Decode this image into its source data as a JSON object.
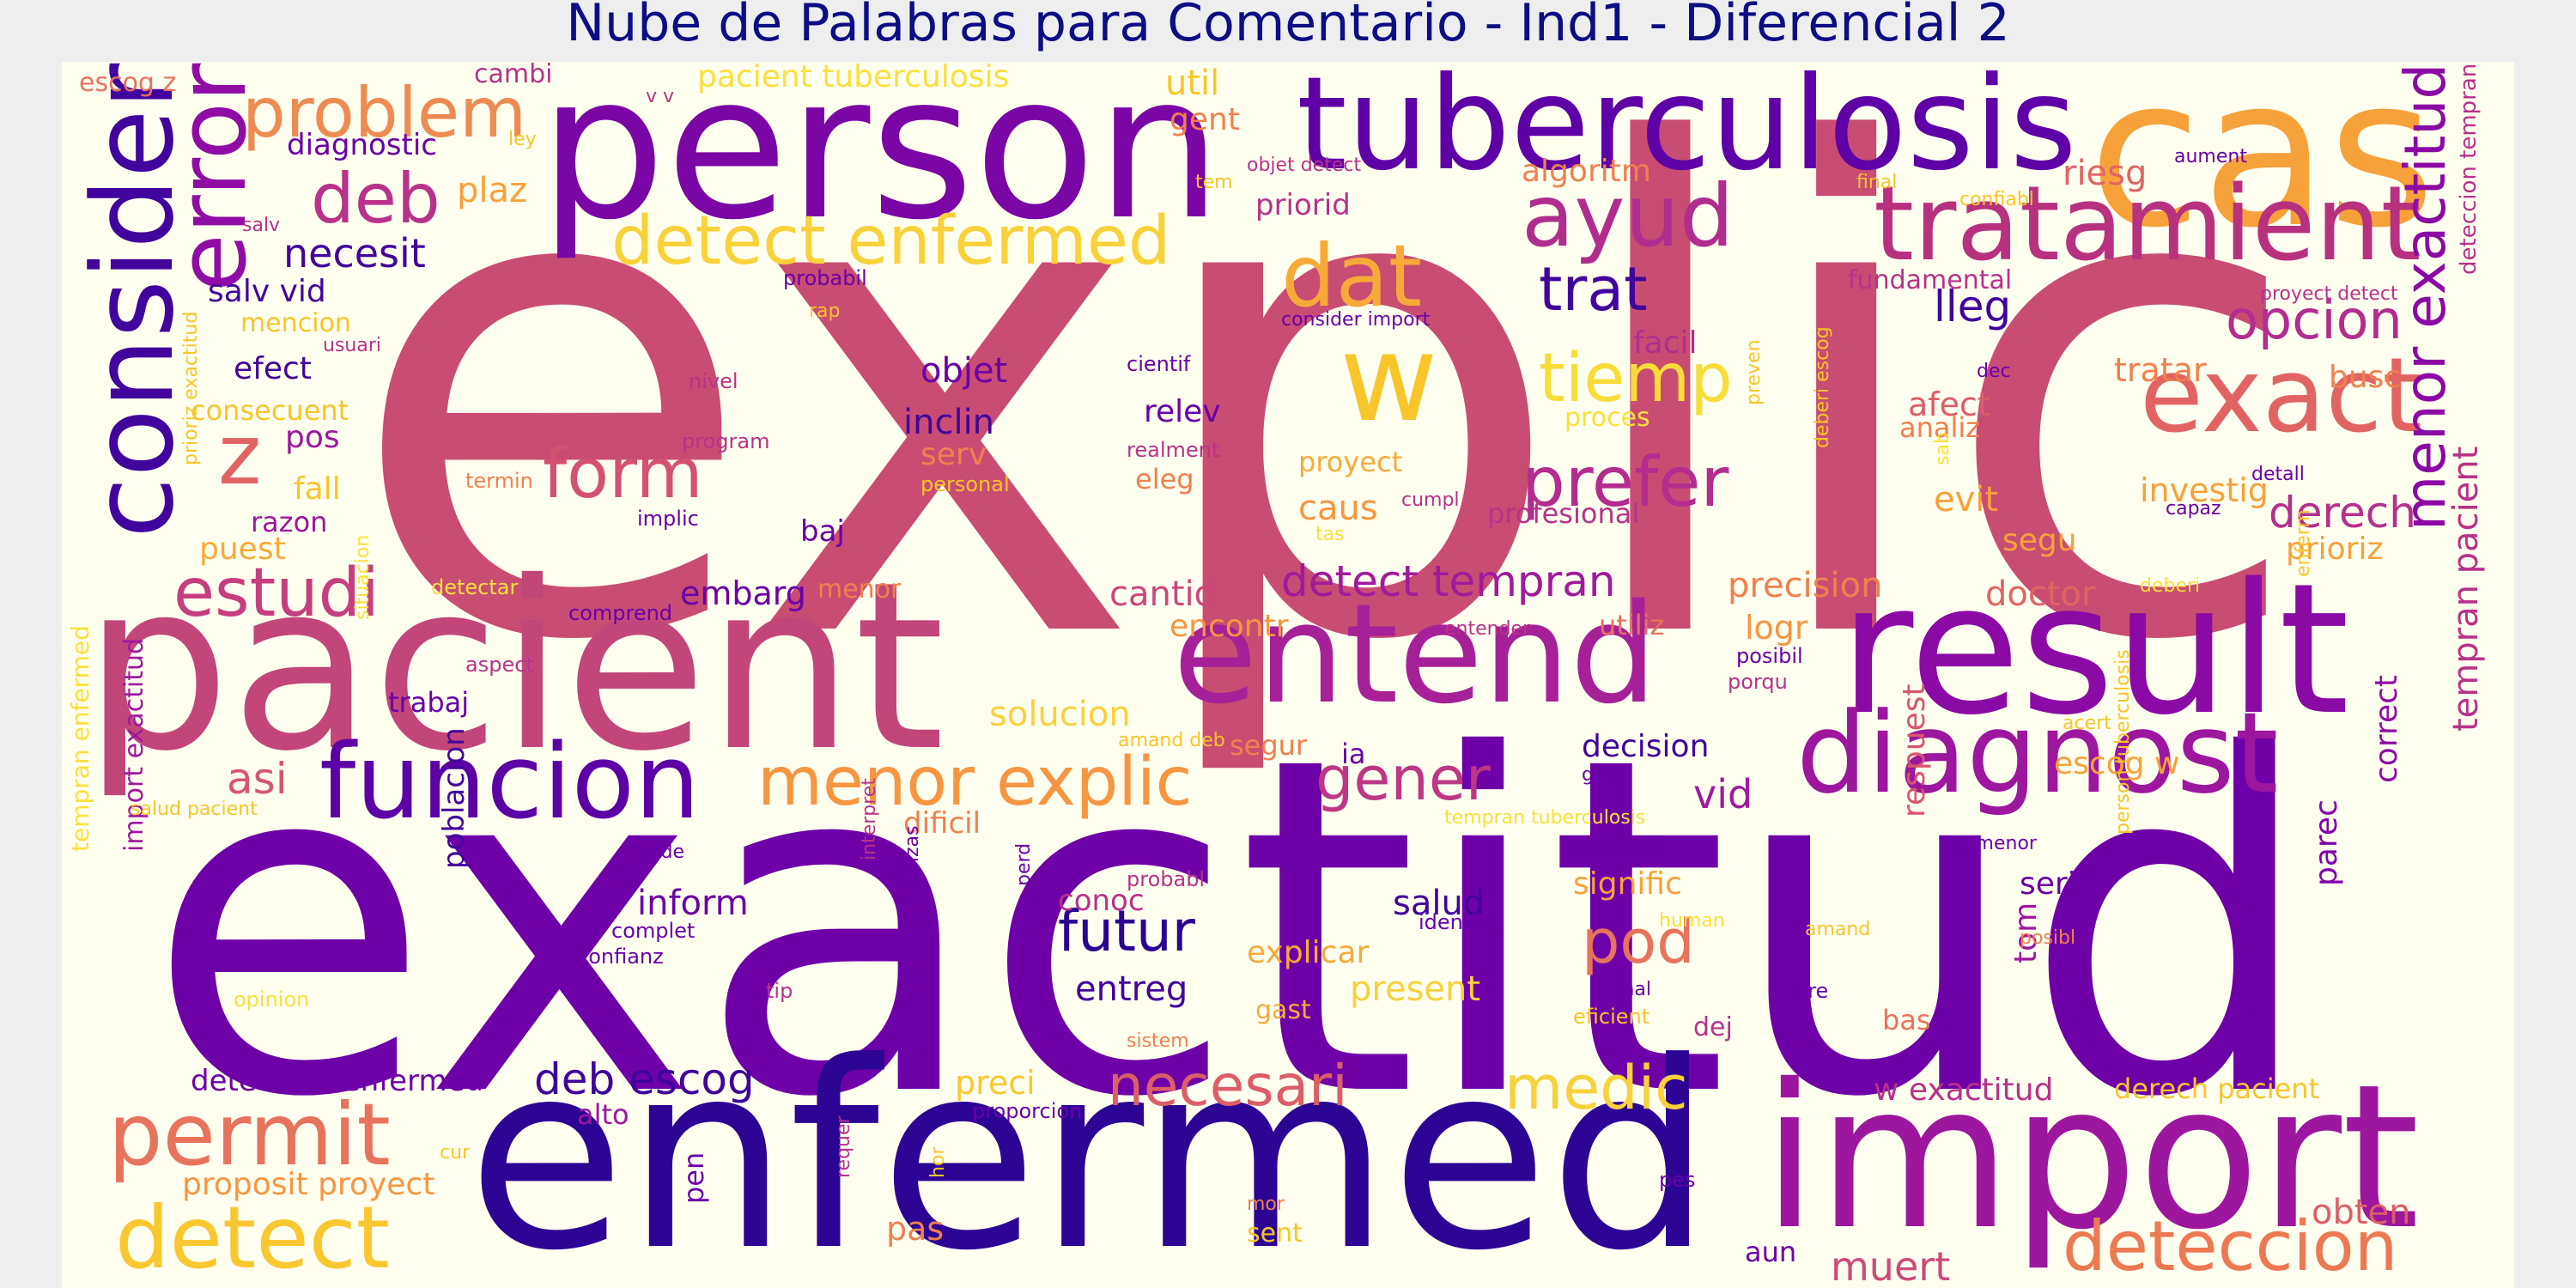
{
  "title": "Nube de Palabras para Comentario - Ind1 - Diferencial 2",
  "colors": {
    "background": "#eeeeee",
    "cloud_background": "#fffff0",
    "title": "#0d0d85"
  },
  "words": [
    {
      "text": "explic",
      "color": "#c94c73",
      "weight": 1.0
    },
    {
      "text": "exactitud",
      "color": "#6e00a8",
      "weight": 0.98
    },
    {
      "text": "enfermed",
      "color": "#2d0594",
      "weight": 0.6
    },
    {
      "text": "pacient",
      "color": "#c2467a",
      "weight": 0.58
    },
    {
      "text": "person",
      "color": "#7a06a5",
      "weight": 0.52
    },
    {
      "text": "import",
      "color": "#9c179e",
      "weight": 0.52
    },
    {
      "text": "cas",
      "color": "#f7a13a",
      "weight": 0.5
    },
    {
      "text": "result",
      "color": "#8b0aa5",
      "weight": 0.44
    },
    {
      "text": "tuberculosis",
      "color": "#5e01a6",
      "weight": 0.36
    },
    {
      "text": "entend",
      "color": "#a62098",
      "weight": 0.35
    },
    {
      "text": "consider",
      "color": "#41049d",
      "weight": 0.3
    },
    {
      "text": "diagnost",
      "color": "#9c179e",
      "weight": 0.3
    },
    {
      "text": "funcion",
      "color": "#5c01a6",
      "weight": 0.3
    },
    {
      "text": "tratamient",
      "color": "#b7317f",
      "weight": 0.28
    },
    {
      "text": "exact",
      "color": "#e16462",
      "weight": 0.28
    },
    {
      "text": "w",
      "color": "#f8c52a",
      "weight": 0.3
    },
    {
      "text": "error",
      "color": "#8f0da4",
      "weight": 0.26
    },
    {
      "text": "permit",
      "color": "#e8735c",
      "weight": 0.24
    },
    {
      "text": "detect",
      "color": "#f9c72f",
      "weight": 0.24
    },
    {
      "text": "dat",
      "color": "#f8aa38",
      "weight": 0.22
    },
    {
      "text": "ayud",
      "color": "#b02d8d",
      "weight": 0.22
    },
    {
      "text": "deteccion",
      "color": "#ed7953",
      "weight": 0.2
    },
    {
      "text": "menor explic",
      "color": "#f89540",
      "weight": 0.2
    },
    {
      "text": "menor exactitud",
      "color": "#8b0aa5",
      "weight": 0.18
    },
    {
      "text": "problem",
      "color": "#ed8b52",
      "weight": 0.18
    },
    {
      "text": "estudi",
      "color": "#c53f7f",
      "weight": 0.18
    },
    {
      "text": "necesari",
      "color": "#dc5e66",
      "weight": 0.16
    },
    {
      "text": "detect enfermed",
      "color": "#f9d23a",
      "weight": 0.18
    },
    {
      "text": "tiemp",
      "color": "#f8dd38",
      "weight": 0.18
    },
    {
      "text": "prefer",
      "color": "#b32c8e",
      "weight": 0.18
    },
    {
      "text": "form",
      "color": "#d35171",
      "weight": 0.18
    },
    {
      "text": "deb",
      "color": "#b83289",
      "weight": 0.18
    },
    {
      "text": "z",
      "color": "#e16462",
      "weight": 0.2
    },
    {
      "text": "pod",
      "color": "#e8735c",
      "weight": 0.16
    },
    {
      "text": "medic",
      "color": "#f8d13c",
      "weight": 0.16
    },
    {
      "text": "gener",
      "color": "#bd3786",
      "weight": 0.16
    },
    {
      "text": "opcion",
      "color": "#b32c8e",
      "weight": 0.16
    },
    {
      "text": "trat",
      "color": "#41049d",
      "weight": 0.16
    },
    {
      "text": "futur",
      "color": "#2a0593",
      "weight": 0.16
    },
    {
      "text": "muert",
      "color": "#cd4a76",
      "weight": 0.1
    },
    {
      "text": "deb escog",
      "color": "#3e049c",
      "weight": 0.12
    },
    {
      "text": "detect tempran",
      "color": "#a01a9c",
      "weight": 0.12
    },
    {
      "text": "asi",
      "color": "#d7566c",
      "weight": 0.12
    },
    {
      "text": "vid",
      "color": "#a01a9c",
      "weight": 0.12
    },
    {
      "text": "derech",
      "color": "#b52f8c",
      "weight": 0.12
    },
    {
      "text": "lleg",
      "color": "#3e049c",
      "weight": 0.12
    },
    {
      "text": "necesit",
      "color": "#41049d",
      "weight": 0.1
    },
    {
      "text": "tempran pacient",
      "color": "#b83289",
      "weight": 0.1
    },
    {
      "text": "plaz",
      "color": "#f8a139",
      "weight": 0.1
    },
    {
      "text": "precision",
      "color": "#f0804e",
      "weight": 0.1
    },
    {
      "text": "doctor",
      "color": "#e16462",
      "weight": 0.1
    },
    {
      "text": "obten",
      "color": "#dc5e66",
      "weight": 0.1
    },
    {
      "text": "solucion",
      "color": "#f8d13c",
      "weight": 0.1
    },
    {
      "text": "cantid",
      "color": "#cc4778",
      "weight": 0.1
    },
    {
      "text": "encontr",
      "color": "#f89540",
      "weight": 0.08
    },
    {
      "text": "riesg",
      "color": "#e16462",
      "weight": 0.08
    },
    {
      "text": "facil",
      "color": "#b02d8d",
      "weight": 0.08
    },
    {
      "text": "busc",
      "color": "#f0804e",
      "weight": 0.08
    },
    {
      "text": "tratar",
      "color": "#f0804e",
      "weight": 0.08
    },
    {
      "text": "afect",
      "color": "#dc5e66",
      "weight": 0.08
    },
    {
      "text": "investig",
      "color": "#f7a13a",
      "weight": 0.08
    },
    {
      "text": "caus",
      "color": "#f89540",
      "weight": 0.08
    },
    {
      "text": "evit",
      "color": "#f7a13a",
      "weight": 0.08
    },
    {
      "text": "segu",
      "color": "#f7a13a",
      "weight": 0.07
    },
    {
      "text": "prioriz",
      "color": "#f7a13a",
      "weight": 0.08
    },
    {
      "text": "logr",
      "color": "#f89540",
      "weight": 0.08
    },
    {
      "text": "utiliz",
      "color": "#e8735c",
      "weight": 0.07
    },
    {
      "text": "decision",
      "color": "#41049d",
      "weight": 0.07
    },
    {
      "text": "escog w",
      "color": "#f7a13a",
      "weight": 0.07
    },
    {
      "text": "respuest",
      "color": "#d7566c",
      "weight": 0.07
    },
    {
      "text": "tom",
      "color": "#9c179e",
      "weight": 0.07
    },
    {
      "text": "parec",
      "color": "#7e03a8",
      "weight": 0.07
    },
    {
      "text": "correct",
      "color": "#8f0da4",
      "weight": 0.07
    },
    {
      "text": "seri",
      "color": "#6a00a8",
      "weight": 0.07
    },
    {
      "text": "bas",
      "color": "#e8735c",
      "weight": 0.07
    },
    {
      "text": "w exactitud",
      "color": "#b83289",
      "weight": 0.08
    },
    {
      "text": "derech pacient",
      "color": "#f8c52a",
      "weight": 0.07
    },
    {
      "text": "salud",
      "color": "#41049d",
      "weight": 0.08
    },
    {
      "text": "signific",
      "color": "#f7a13a",
      "weight": 0.07
    },
    {
      "text": "explicar",
      "color": "#f8aa38",
      "weight": 0.08
    },
    {
      "text": "present",
      "color": "#f8d13c",
      "weight": 0.08
    },
    {
      "text": "entreg",
      "color": "#41049d",
      "weight": 0.08
    },
    {
      "text": "conoc",
      "color": "#b83289",
      "weight": 0.07
    },
    {
      "text": "preci",
      "color": "#f9c72f",
      "weight": 0.07
    },
    {
      "text": "pas",
      "color": "#f0804e",
      "weight": 0.07
    },
    {
      "text": "inform",
      "color": "#6a00a8",
      "weight": 0.08
    },
    {
      "text": "poblacion",
      "color": "#41049d",
      "weight": 0.07
    },
    {
      "text": "deteccion enfermed",
      "color": "#6e00a8",
      "weight": 0.07
    },
    {
      "text": "alto",
      "color": "#9c179e",
      "weight": 0.07
    },
    {
      "text": "import exactitud",
      "color": "#9c179e",
      "weight": 0.06
    },
    {
      "text": "tempran enfermed",
      "color": "#f9e03c",
      "weight": 0.06
    },
    {
      "text": "proposit proyect",
      "color": "#f89540",
      "weight": 0.07
    },
    {
      "text": "embarg",
      "color": "#6a00a8",
      "weight": 0.07
    },
    {
      "text": "objet",
      "color": "#6a00a8",
      "weight": 0.07
    },
    {
      "text": "inclin",
      "color": "#41049d",
      "weight": 0.08
    },
    {
      "text": "relev",
      "color": "#6a00a8",
      "weight": 0.07
    },
    {
      "text": "serv",
      "color": "#f0804e",
      "weight": 0.07
    },
    {
      "text": "eleg",
      "color": "#f0804e",
      "weight": 0.06
    },
    {
      "text": "baj",
      "color": "#6a00a8",
      "weight": 0.06
    },
    {
      "text": "ia",
      "color": "#6a00a8",
      "weight": 0.06
    },
    {
      "text": "segur",
      "color": "#f0804e",
      "weight": 0.06
    },
    {
      "text": "dificil",
      "color": "#f0804e",
      "weight": 0.06
    },
    {
      "text": "efect",
      "color": "#41049d",
      "weight": 0.07
    },
    {
      "text": "pos",
      "color": "#9c179e",
      "weight": 0.07
    },
    {
      "text": "fall",
      "color": "#f8c52a",
      "weight": 0.07
    },
    {
      "text": "razon",
      "color": "#9c179e",
      "weight": 0.06
    },
    {
      "text": "puest",
      "color": "#f8aa38",
      "weight": 0.07
    },
    {
      "text": "consecuent",
      "color": "#f8c52a",
      "weight": 0.06
    },
    {
      "text": "salv vid",
      "color": "#41049d",
      "weight": 0.07
    },
    {
      "text": "diagnostic",
      "color": "#6a00a8",
      "weight": 0.07
    },
    {
      "text": "mencion",
      "color": "#f8c52a",
      "weight": 0.06
    },
    {
      "text": "trabaj",
      "color": "#6a00a8",
      "weight": 0.06
    },
    {
      "text": "pacient tuberculosis",
      "color": "#f9e03c",
      "weight": 0.06
    },
    {
      "text": "escog z",
      "color": "#e8735c",
      "weight": 0.05
    },
    {
      "text": "cambi",
      "color": "#b83289",
      "weight": 0.05
    },
    {
      "text": "util",
      "color": "#f8c52a",
      "weight": 0.07
    },
    {
      "text": "gent",
      "color": "#f0804e",
      "weight": 0.07
    },
    {
      "text": "algoritm",
      "color": "#f0804e",
      "weight": 0.07
    },
    {
      "text": "priorid",
      "color": "#b83289",
      "weight": 0.07
    },
    {
      "text": "fundamental",
      "color": "#b83289",
      "weight": 0.06
    },
    {
      "text": "proyect",
      "color": "#f8aa38",
      "weight": 0.06
    },
    {
      "text": "profesional",
      "color": "#b83289",
      "weight": 0.06
    },
    {
      "text": "proces",
      "color": "#f9e03c",
      "weight": 0.06
    },
    {
      "text": "analiz",
      "color": "#f0804e",
      "weight": 0.05
    },
    {
      "text": "menor",
      "color": "#f0804e",
      "weight": 0.05
    },
    {
      "text": "pen",
      "color": "#6a00a8",
      "weight": 0.05
    },
    {
      "text": "aun",
      "color": "#6a00a8",
      "weight": 0.06
    },
    {
      "text": "sent",
      "color": "#f8c52a",
      "weight": 0.05
    },
    {
      "text": "gast",
      "color": "#f8aa38",
      "weight": 0.05
    },
    {
      "text": "dej",
      "color": "#b83289",
      "weight": 0.05
    },
    {
      "text": "cre",
      "color": "#6a00a8",
      "weight": 0.04
    },
    {
      "text": "mal",
      "color": "#6a00a8",
      "weight": 0.04
    },
    {
      "text": "detectar",
      "color": "#f9e03c",
      "weight": 0.04
    },
    {
      "text": "realment",
      "color": "#b83289",
      "weight": 0.04
    },
    {
      "text": "cientif",
      "color": "#6a00a8",
      "weight": 0.04
    },
    {
      "text": "nivel",
      "color": "#b83289",
      "weight": 0.04
    },
    {
      "text": "program",
      "color": "#b83289",
      "weight": 0.04
    },
    {
      "text": "termin",
      "color": "#f0804e",
      "weight": 0.04
    },
    {
      "text": "implic",
      "color": "#6a00a8",
      "weight": 0.04
    },
    {
      "text": "comprend",
      "color": "#6a00a8",
      "weight": 0.04
    },
    {
      "text": "aspect",
      "color": "#b83289",
      "weight": 0.04
    },
    {
      "text": "personal",
      "color": "#f8c52a",
      "weight": 0.04
    },
    {
      "text": "cumpl",
      "color": "#b83289",
      "weight": 0.04
    },
    {
      "text": "tas",
      "color": "#f9e03c",
      "weight": 0.04
    },
    {
      "text": "entender",
      "color": "#b83289",
      "weight": 0.04
    },
    {
      "text": "posibil",
      "color": "#6a00a8",
      "weight": 0.04
    },
    {
      "text": "porqu",
      "color": "#b83289",
      "weight": 0.04
    },
    {
      "text": "acert",
      "color": "#f8c52a",
      "weight": 0.04
    },
    {
      "text": "grav",
      "color": "#6a00a8",
      "weight": 0.04
    },
    {
      "text": "amand deb",
      "color": "#f8c52a",
      "weight": 0.04
    },
    {
      "text": "tempran tuberculosis",
      "color": "#f9e03c",
      "weight": 0.04
    },
    {
      "text": "desarroll",
      "color": "#6a00a8",
      "weight": 0.04
    },
    {
      "text": "z menor",
      "color": "#6a00a8",
      "weight": 0.04
    },
    {
      "text": "probabl",
      "color": "#b83289",
      "weight": 0.04
    },
    {
      "text": "identific",
      "color": "#6a00a8",
      "weight": 0.04
    },
    {
      "text": "human",
      "color": "#f9e03c",
      "weight": 0.04
    },
    {
      "text": "amand",
      "color": "#f8c52a",
      "weight": 0.04
    },
    {
      "text": "posibl",
      "color": "#f0804e",
      "weight": 0.04
    },
    {
      "text": "eficient",
      "color": "#f8c52a",
      "weight": 0.04
    },
    {
      "text": "sistem",
      "color": "#f0804e",
      "weight": 0.04
    },
    {
      "text": "proporcion",
      "color": "#6a00a8",
      "weight": 0.04
    },
    {
      "text": "cur",
      "color": "#f8c52a",
      "weight": 0.04
    },
    {
      "text": "hor",
      "color": "#f8c52a",
      "weight": 0.04
    },
    {
      "text": "mor",
      "color": "#f0804e",
      "weight": 0.04
    },
    {
      "text": "pes",
      "color": "#6a00a8",
      "weight": 0.04
    },
    {
      "text": "tip",
      "color": "#b83289",
      "weight": 0.04
    },
    {
      "text": "opinion",
      "color": "#f9e03c",
      "weight": 0.04
    },
    {
      "text": "complet",
      "color": "#6a00a8",
      "weight": 0.04
    },
    {
      "text": "confianz",
      "color": "#6a00a8",
      "weight": 0.04
    },
    {
      "text": "ende",
      "color": "#6a00a8",
      "weight": 0.04
    },
    {
      "text": "salud pacient",
      "color": "#f8c52a",
      "weight": 0.04
    },
    {
      "text": "situacion",
      "color": "#f9e03c",
      "weight": 0.04
    },
    {
      "text": "prioriz exactitud",
      "color": "#f8c52a",
      "weight": 0.04
    },
    {
      "text": "usuari",
      "color": "#b83289",
      "weight": 0.04
    },
    {
      "text": "salv",
      "color": "#b83289",
      "weight": 0.04
    },
    {
      "text": "ley",
      "color": "#f8c52a",
      "weight": 0.04
    },
    {
      "text": "probabil",
      "color": "#6a00a8",
      "weight": 0.04
    },
    {
      "text": "rap",
      "color": "#f8c52a",
      "weight": 0.04
    },
    {
      "text": "objet detect",
      "color": "#b83289",
      "weight": 0.04
    },
    {
      "text": "tem",
      "color": "#f8c52a",
      "weight": 0.04
    },
    {
      "text": "consider import",
      "color": "#6a00a8",
      "weight": 0.04
    },
    {
      "text": "final",
      "color": "#f8c52a",
      "weight": 0.04
    },
    {
      "text": "confiabl",
      "color": "#f8c52a",
      "weight": 0.04
    },
    {
      "text": "aument",
      "color": "#6a00a8",
      "weight": 0.04
    },
    {
      "text": "proyect detect",
      "color": "#b83289",
      "weight": 0.04
    },
    {
      "text": "dec",
      "color": "#6a00a8",
      "weight": 0.04
    },
    {
      "text": "deteccion tempran",
      "color": "#b83289",
      "weight": 0.05
    },
    {
      "text": "detall",
      "color": "#6a00a8",
      "weight": 0.04
    },
    {
      "text": "capaz",
      "color": "#6a00a8",
      "weight": 0.04
    },
    {
      "text": "deberi",
      "color": "#f9e03c",
      "weight": 0.04
    },
    {
      "text": "enferm",
      "color": "#f8c52a",
      "weight": 0.04
    },
    {
      "text": "deberi escog",
      "color": "#f8c52a",
      "weight": 0.04
    },
    {
      "text": "sab",
      "color": "#f9e03c",
      "weight": 0.04
    },
    {
      "text": "preven",
      "color": "#f8c52a",
      "weight": 0.04
    },
    {
      "text": "person tuberculosis",
      "color": "#f8c52a",
      "weight": 0.04
    },
    {
      "text": "interpret",
      "color": "#b83289",
      "weight": 0.04
    },
    {
      "text": "quizas",
      "color": "#6a00a8",
      "weight": 0.04
    },
    {
      "text": "perd",
      "color": "#6a00a8",
      "weight": 0.04
    },
    {
      "text": "requer",
      "color": "#b83289",
      "weight": 0.04
    },
    {
      "text": "v v",
      "color": "#b83289",
      "weight": 0.04
    }
  ]
}
